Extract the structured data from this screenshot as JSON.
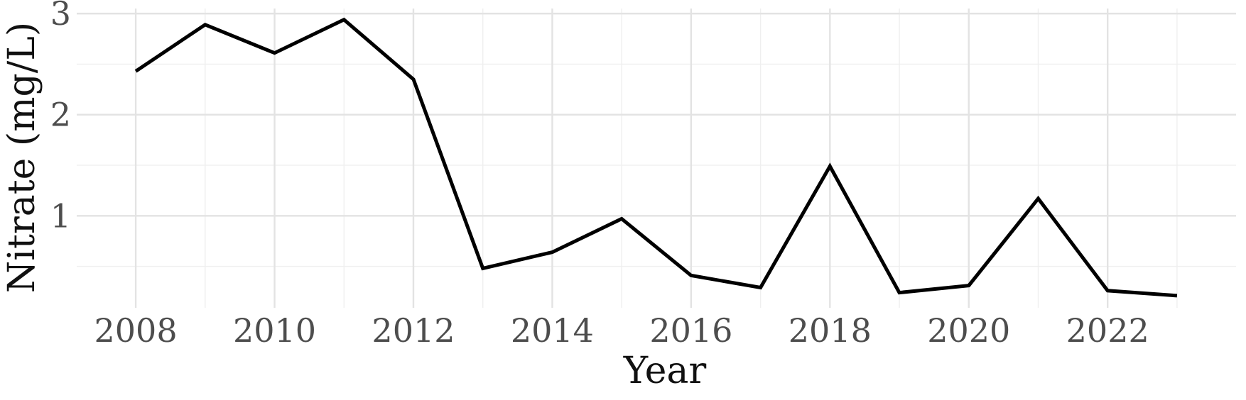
{
  "chart_data": {
    "type": "line",
    "title": "",
    "xlabel": "Year",
    "ylabel": "Nitrate (mg/L)",
    "xlim": [
      2007.15,
      2023.85
    ],
    "ylim": [
      0.09,
      3.05
    ],
    "x_ticks": [
      2008,
      2010,
      2012,
      2014,
      2016,
      2018,
      2020,
      2022
    ],
    "y_ticks": [
      1,
      2,
      3
    ],
    "grid": true,
    "legend": "none",
    "colors": {
      "line": "#000000",
      "grid": "#e3e3e3",
      "tick_text": "#4d4d4d",
      "background": "#ffffff"
    },
    "x": [
      2008,
      2009,
      2010,
      2011,
      2012,
      2013,
      2014,
      2015,
      2016,
      2017,
      2018,
      2019,
      2020,
      2021,
      2022,
      2023
    ],
    "series": [
      {
        "values": [
          2.43,
          2.89,
          2.61,
          2.94,
          2.35,
          0.48,
          0.64,
          0.97,
          0.41,
          0.29,
          1.49,
          0.24,
          0.31,
          1.17,
          0.26,
          0.21
        ]
      }
    ]
  }
}
